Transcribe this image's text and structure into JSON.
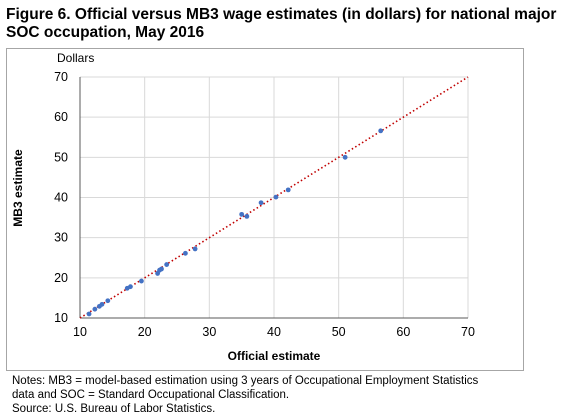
{
  "figure": {
    "title": "Figure 6. Official versus MB3 wage estimates (in dollars) for national major SOC occupation, May 2016"
  },
  "notes": {
    "line1": "Notes: MB3 = model-based estimation using 3 years of Occupational Employment Statistics",
    "line2": "data and SOC = Standard Occupational Classification.",
    "source": "Source: U.S. Bureau of Labor Statistics."
  },
  "chart_data": {
    "type": "scatter",
    "title": "",
    "xlabel": "Official estimate",
    "ylabel": "MB3 estimate",
    "unit_label": "Dollars",
    "xlim": [
      10,
      70
    ],
    "ylim": [
      10,
      70
    ],
    "xticks": [
      10,
      20,
      30,
      40,
      50,
      60,
      70
    ],
    "yticks": [
      10,
      20,
      30,
      40,
      50,
      60,
      70
    ],
    "grid": true,
    "legend": "none",
    "colors": {
      "points": "#4472c4",
      "reference_line": "#c00000",
      "grid": "#d9d9d9"
    },
    "reference_line": {
      "from": [
        10,
        10
      ],
      "to": [
        70,
        70
      ],
      "style": "dotted"
    },
    "points": [
      [
        11.4,
        11.0
      ],
      [
        12.3,
        12.2
      ],
      [
        13.0,
        12.9
      ],
      [
        13.4,
        13.4
      ],
      [
        14.3,
        14.3
      ],
      [
        17.3,
        17.4
      ],
      [
        17.8,
        17.8
      ],
      [
        19.5,
        19.2
      ],
      [
        22.0,
        21.1
      ],
      [
        22.3,
        21.9
      ],
      [
        22.6,
        22.2
      ],
      [
        23.4,
        23.3
      ],
      [
        26.3,
        26.1
      ],
      [
        27.8,
        27.2
      ],
      [
        35.0,
        35.8
      ],
      [
        35.8,
        35.3
      ],
      [
        38.0,
        38.7
      ],
      [
        40.3,
        40.1
      ],
      [
        42.2,
        41.9
      ],
      [
        51.0,
        50.0
      ],
      [
        56.5,
        56.6
      ]
    ]
  }
}
